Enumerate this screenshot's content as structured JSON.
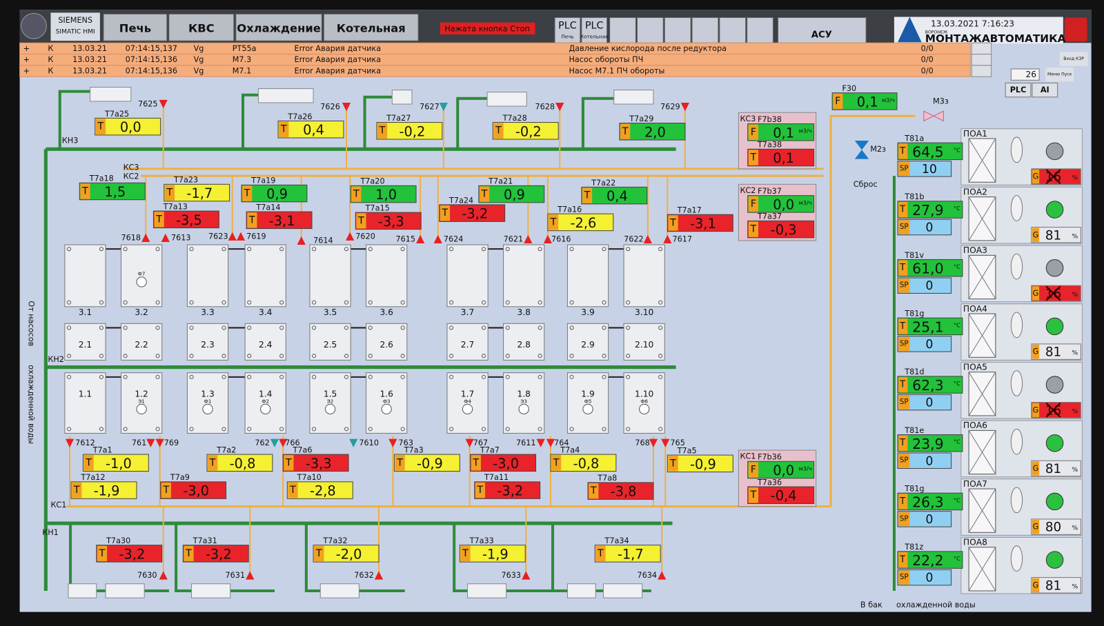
{
  "header": {
    "brand": "SIEMENS",
    "product": "SIMATIC HMI",
    "nav": [
      "Печь",
      "КВС",
      "Охлаждение",
      "Котельная"
    ],
    "alarm_banner": "Нажата кнопка Стоп",
    "plc_buttons": [
      {
        "title": "PLC",
        "sub": "Печь"
      },
      {
        "title": "PLC",
        "sub": "Котельная"
      }
    ],
    "asu": "АСУ",
    "datetime": "13.03.2021 7:16:23",
    "logo_city": "ВОРОНЕЖ",
    "logo_name": "МОНТАЖАВТОМАТИКА"
  },
  "alarms": [
    [
      "+",
      "К",
      "13.03.21",
      "07:14:15,137",
      "Vg",
      "PT55a",
      "Error Авария датчика",
      "Давление кислорода после редуктора",
      "0/0"
    ],
    [
      "+",
      "К",
      "13.03.21",
      "07:14:15,136",
      "Vg",
      "M7.3",
      "Error Авария датчика",
      "Насос обороты ПЧ",
      "0/0"
    ],
    [
      "+",
      "К",
      "13.03.21",
      "07:14:15,136",
      "Vg",
      "M7.1",
      "Error Авария датчика",
      "Насос M7.1 ПЧ обороты",
      "0/0"
    ]
  ],
  "side": {
    "enter": "Вход КЗР",
    "menu": "Меню Пуск",
    "counter": "26",
    "plc": "PLC",
    "ai": "AI"
  },
  "lines": {
    "kn3": "КН3",
    "kc3": "КС3",
    "kc2": "КС2",
    "kn2": "КН2",
    "kc1": "КС1",
    "kn1": "КН1",
    "from_pumps": "От насосов",
    "cooled_water": "охлажденной воды",
    "to_tank": "В бак",
    "to_tank_2": "охлажденной воды"
  },
  "sensors": [
    {
      "label": "T7a25",
      "type": "T",
      "value": "0,0",
      "color": "#f5f032"
    },
    {
      "label": "T7a26",
      "type": "T",
      "value": "0,4",
      "color": "#f5f032"
    },
    {
      "label": "T7a27",
      "type": "T",
      "value": "-0,2",
      "color": "#f5f032"
    },
    {
      "label": "T7a28",
      "type": "T",
      "value": "-0,2",
      "color": "#f5f032"
    },
    {
      "label": "T7a29",
      "type": "T",
      "value": "2,0",
      "color": "#22c23a"
    },
    {
      "label": "T7a18",
      "type": "T",
      "value": "1,5",
      "color": "#22c23a"
    },
    {
      "label": "T7a23",
      "type": "T",
      "value": "-1,7",
      "color": "#f5f032"
    },
    {
      "label": "T7a19",
      "type": "T",
      "value": "0,9",
      "color": "#22c23a"
    },
    {
      "label": "T7a20",
      "type": "T",
      "value": "1,0",
      "color": "#22c23a"
    },
    {
      "label": "T7a21",
      "type": "T",
      "value": "0,9",
      "color": "#22c23a"
    },
    {
      "label": "T7a22",
      "type": "T",
      "value": "0,4",
      "color": "#22c23a"
    },
    {
      "label": "T7a13",
      "type": "T",
      "value": "-3,5",
      "color": "#e8242a"
    },
    {
      "label": "T7a14",
      "type": "T",
      "value": "-3,1",
      "color": "#e8242a"
    },
    {
      "label": "T7a15",
      "type": "T",
      "value": "-3,3",
      "color": "#e8242a"
    },
    {
      "label": "T7a24",
      "type": "T",
      "value": "-3,2",
      "color": "#e8242a"
    },
    {
      "label": "T7a16",
      "type": "T",
      "value": "-2,6",
      "color": "#f5f032"
    },
    {
      "label": "T7a17",
      "type": "T",
      "value": "-3,1",
      "color": "#e8242a"
    },
    {
      "label": "T7a1",
      "type": "T",
      "value": "-1,0",
      "color": "#f5f032"
    },
    {
      "label": "T7a2",
      "type": "T",
      "value": "-0,8",
      "color": "#f5f032"
    },
    {
      "label": "T7a6",
      "type": "T",
      "value": "-3,3",
      "color": "#e8242a"
    },
    {
      "label": "T7a3",
      "type": "T",
      "value": "-0,9",
      "color": "#f5f032"
    },
    {
      "label": "T7a7",
      "type": "T",
      "value": "-3,0",
      "color": "#e8242a"
    },
    {
      "label": "T7a4",
      "type": "T",
      "value": "-0,8",
      "color": "#f5f032"
    },
    {
      "label": "T7a5",
      "type": "T",
      "value": "-0,9",
      "color": "#f5f032"
    },
    {
      "label": "T7a12",
      "type": "T",
      "value": "-1,9",
      "color": "#f5f032"
    },
    {
      "label": "T7a9",
      "type": "T",
      "value": "-3,0",
      "color": "#e8242a"
    },
    {
      "label": "T7a10",
      "type": "T",
      "value": "-2,8",
      "color": "#f5f032"
    },
    {
      "label": "T7a11",
      "type": "T",
      "value": "-3,2",
      "color": "#e8242a"
    },
    {
      "label": "T7a8",
      "type": "T",
      "value": "-3,8",
      "color": "#e8242a"
    },
    {
      "label": "T7a30",
      "type": "T",
      "value": "-3,2",
      "color": "#e8242a"
    },
    {
      "label": "T7a31",
      "type": "T",
      "value": "-3,2",
      "color": "#e8242a"
    },
    {
      "label": "T7a32",
      "type": "T",
      "value": "-2,0",
      "color": "#f5f032"
    },
    {
      "label": "T7a33",
      "type": "T",
      "value": "-1,9",
      "color": "#f5f032"
    },
    {
      "label": "T7a34",
      "type": "T",
      "value": "-1,7",
      "color": "#f5f032"
    }
  ],
  "kc": [
    {
      "name": "КС3",
      "flow": {
        "label": "F7b38",
        "type": "F",
        "value": "0,1",
        "unit": "м3/ч",
        "color": "#22c23a"
      },
      "temp": {
        "label": "T7a38",
        "type": "T",
        "value": "0,1",
        "color": "#e8242a"
      }
    },
    {
      "name": "КС2",
      "flow": {
        "label": "F7b37",
        "type": "F",
        "value": "0,0",
        "unit": "м3/ч",
        "color": "#22c23a"
      },
      "temp": {
        "label": "T7a37",
        "type": "T",
        "value": "-0,3",
        "color": "#e8242a"
      }
    },
    {
      "name": "КС1",
      "flow": {
        "label": "F7b36",
        "type": "F",
        "value": "0,0",
        "unit": "м3/ч",
        "color": "#22c23a"
      },
      "temp": {
        "label": "T7a36",
        "type": "T",
        "value": "-0,4",
        "color": "#e8242a"
      }
    }
  ],
  "f30": {
    "label": "F30",
    "type": "F",
    "value": "0,1",
    "unit": "м3/ч",
    "color": "#22c23a"
  },
  "valves_main": {
    "m3z": "М3з",
    "m2z": "М2з",
    "reset": "Сброс"
  },
  "valves": [
    "7625",
    "7626",
    "7627",
    "7628",
    "7629",
    "7618",
    "7613",
    "7623",
    "7619",
    "7614",
    "7620",
    "7615",
    "7624",
    "7621",
    "7616",
    "7622",
    "7617",
    "7612",
    "761",
    "769",
    "762",
    "766",
    "7610",
    "763",
    "767",
    "7611",
    "764",
    "768",
    "765",
    "7630",
    "7631",
    "7632",
    "7633",
    "7634"
  ],
  "cells": [
    {
      "label": "3.1"
    },
    {
      "label": "3.2",
      "sub": "Ф7"
    },
    {
      "label": "3.3"
    },
    {
      "label": "3.4"
    },
    {
      "label": "3.5"
    },
    {
      "label": "3.6"
    },
    {
      "label": "3.7"
    },
    {
      "label": "3.8"
    },
    {
      "label": "3.9"
    },
    {
      "label": "3.10"
    },
    {
      "label": "2.1"
    },
    {
      "label": "2.2"
    },
    {
      "label": "2.3"
    },
    {
      "label": "2.4"
    },
    {
      "label": "2.5"
    },
    {
      "label": "2.6"
    },
    {
      "label": "2.7"
    },
    {
      "label": "2.8"
    },
    {
      "label": "2.9"
    },
    {
      "label": "2.10"
    },
    {
      "label": "1.1"
    },
    {
      "label": "1.2",
      "sub": "Э1"
    },
    {
      "label": "1.3",
      "sub": "Ф1"
    },
    {
      "label": "1.4",
      "sub": "Ф2"
    },
    {
      "label": "1.5",
      "sub": "Э2"
    },
    {
      "label": "1.6",
      "sub": "Ф3"
    },
    {
      "label": "1.7",
      "sub": "Ф4"
    },
    {
      "label": "1.8",
      "sub": "Э3"
    },
    {
      "label": "1.9",
      "sub": "Ф5"
    },
    {
      "label": "1.10",
      "sub": "Ф6"
    }
  ],
  "poa": [
    {
      "label": "T81a",
      "type": "T",
      "value": "64,5",
      "unit": "°C",
      "sp_type": "SP",
      "sp": "10",
      "name": "ПОА1",
      "g_type": "G",
      "g": "16",
      "g_unit": "%",
      "g_color": "#e8242a",
      "pump_color": "#9aa0a8"
    },
    {
      "label": "T81b",
      "type": "T",
      "value": "27,9",
      "unit": "°C",
      "sp_type": "SP",
      "sp": "0",
      "name": "ПОА2",
      "g_type": "G",
      "g": "81",
      "g_unit": "%",
      "g_color": "#e6e8ec",
      "pump_color": "#2cc040"
    },
    {
      "label": "T81v",
      "type": "T",
      "value": "61,0",
      "unit": "°C",
      "sp_type": "SP",
      "sp": "0",
      "name": "ПОА3",
      "g_type": "G",
      "g": "16",
      "g_unit": "%",
      "g_color": "#e8242a",
      "pump_color": "#9aa0a8"
    },
    {
      "label": "T81g",
      "type": "T",
      "value": "25,1",
      "unit": "°C",
      "sp_type": "SP",
      "sp": "0",
      "name": "ПОА4",
      "g_type": "G",
      "g": "81",
      "g_unit": "%",
      "g_color": "#e6e8ec",
      "pump_color": "#2cc040"
    },
    {
      "label": "T81d",
      "type": "T",
      "value": "62,3",
      "unit": "°C",
      "sp_type": "SP",
      "sp": "0",
      "name": "ПОА5",
      "g_type": "G",
      "g": "16",
      "g_unit": "%",
      "g_color": "#e8242a",
      "pump_color": "#9aa0a8"
    },
    {
      "label": "T81e",
      "type": "T",
      "value": "23,9",
      "unit": "°C",
      "sp_type": "SP",
      "sp": "0",
      "name": "ПОА6",
      "g_type": "G",
      "g": "81",
      "g_unit": "%",
      "g_color": "#e6e8ec",
      "pump_color": "#2cc040"
    },
    {
      "label": "T81g",
      "type": "T",
      "value": "26,3",
      "unit": "°C",
      "sp_type": "SP",
      "sp": "0",
      "name": "ПОА7",
      "g_type": "G",
      "g": "80",
      "g_unit": "%",
      "g_color": "#e6e8ec",
      "pump_color": "#2cc040"
    },
    {
      "label": "T81z",
      "type": "T",
      "value": "22,2",
      "unit": "°C",
      "sp_type": "SP",
      "sp": "0",
      "name": "ПОА8",
      "g_type": "G",
      "g": "81",
      "g_unit": "%",
      "g_color": "#e6e8ec",
      "pump_color": "#2cc040"
    }
  ]
}
